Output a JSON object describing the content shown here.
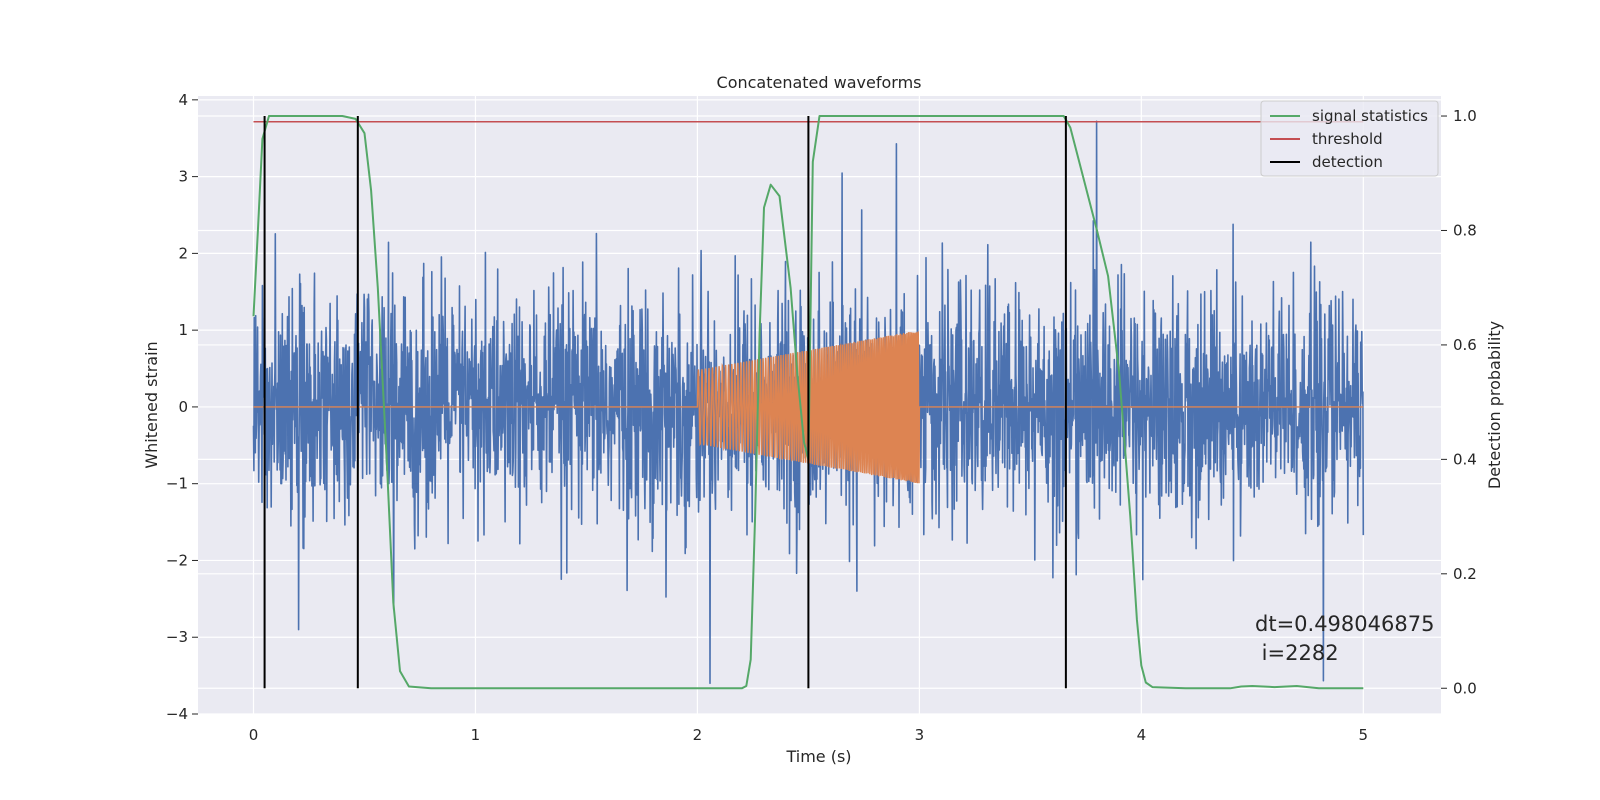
{
  "chart_data": {
    "type": "line",
    "title": "Concatenated waveforms",
    "xlabel": "Time (s)",
    "ylabel": "Whitened strain",
    "y2label": "Detection probability",
    "xlim": [
      -0.25,
      5.35
    ],
    "ylim": [
      -4,
      4.05
    ],
    "y2lim": [
      -0.045,
      1.035
    ],
    "x_ticks": [
      0,
      1,
      2,
      3,
      4,
      5
    ],
    "x_tick_labels": [
      "0",
      "1",
      "2",
      "3",
      "4",
      "5"
    ],
    "y_ticks": [
      -4,
      -3,
      -2,
      -1,
      0,
      1,
      2,
      3,
      4
    ],
    "y_tick_labels": [
      "−4",
      "−3",
      "−2",
      "−1",
      "0",
      "1",
      "2",
      "3",
      "4"
    ],
    "y2_ticks": [
      0.0,
      0.2,
      0.4,
      0.6,
      0.8,
      1.0
    ],
    "y2_tick_labels": [
      "0.0",
      "0.2",
      "0.4",
      "0.6",
      "0.8",
      "1.0"
    ],
    "grid": true,
    "legend_position": "top-right",
    "colors": {
      "background": "#eaeaf2",
      "grid": "#ffffff",
      "strain": "#4c72b0",
      "injection": "#dd8452",
      "statistic": "#55a868",
      "threshold": "#c44e52",
      "detection": "#000000"
    },
    "series": [
      {
        "name": "",
        "axis": "left",
        "color": "#4c72b0",
        "description_kind": "noise",
        "x_range": [
          0,
          5
        ],
        "std": 0.72,
        "peak_min": -3.6,
        "peak_max": 3.72
      },
      {
        "name": "",
        "axis": "left",
        "color": "#dd8452",
        "x_range": [
          0,
          5
        ],
        "chirp_start": 2.0,
        "chirp_end": 3.0,
        "amplitude_start": 0.48,
        "amplitude_end": 1.0
      },
      {
        "name": "signal statistics",
        "axis": "right",
        "color": "#55a868",
        "x": [
          0.0,
          0.02,
          0.04,
          0.07,
          0.1,
          0.2,
          0.3,
          0.4,
          0.46,
          0.5,
          0.53,
          0.56,
          0.6,
          0.63,
          0.66,
          0.7,
          0.8,
          1.0,
          1.5,
          2.0,
          2.1,
          2.2,
          2.22,
          2.24,
          2.26,
          2.28,
          2.3,
          2.33,
          2.37,
          2.42,
          2.45,
          2.48,
          2.5,
          2.52,
          2.55,
          2.6,
          3.0,
          3.5,
          3.65,
          3.68,
          3.72,
          3.76,
          3.8,
          3.85,
          3.9,
          3.95,
          3.98,
          4.0,
          4.02,
          4.05,
          4.2,
          4.4,
          4.45,
          4.5,
          4.6,
          4.7,
          4.8,
          5.0
        ],
        "y": [
          0.65,
          0.8,
          0.96,
          1.0,
          1.0,
          1.0,
          1.0,
          1.0,
          0.995,
          0.97,
          0.87,
          0.7,
          0.4,
          0.15,
          0.03,
          0.003,
          0.0,
          0.0,
          0.0,
          0.0,
          0.0,
          0.0,
          0.004,
          0.05,
          0.3,
          0.62,
          0.84,
          0.88,
          0.86,
          0.7,
          0.55,
          0.43,
          0.4,
          0.92,
          1.0,
          1.0,
          1.0,
          1.0,
          1.0,
          0.98,
          0.92,
          0.86,
          0.8,
          0.72,
          0.55,
          0.3,
          0.12,
          0.04,
          0.01,
          0.002,
          0.0,
          0.0,
          0.003,
          0.004,
          0.002,
          0.004,
          0.0,
          0.0
        ]
      },
      {
        "name": "threshold",
        "axis": "right",
        "color": "#c44e52",
        "x": [
          0,
          5
        ],
        "y": [
          0.99,
          0.99
        ]
      },
      {
        "name": "detection",
        "axis": "right",
        "color": "#000000",
        "type": "vlines",
        "x": [
          0.05,
          0.47,
          2.5,
          3.66
        ],
        "ymin": 0.0,
        "ymax": 1.0
      }
    ],
    "legend": [
      "signal statistics",
      "threshold",
      "detection"
    ],
    "annotation": {
      "line1": "dt=0.498046875",
      "line2": " i=2282"
    }
  }
}
